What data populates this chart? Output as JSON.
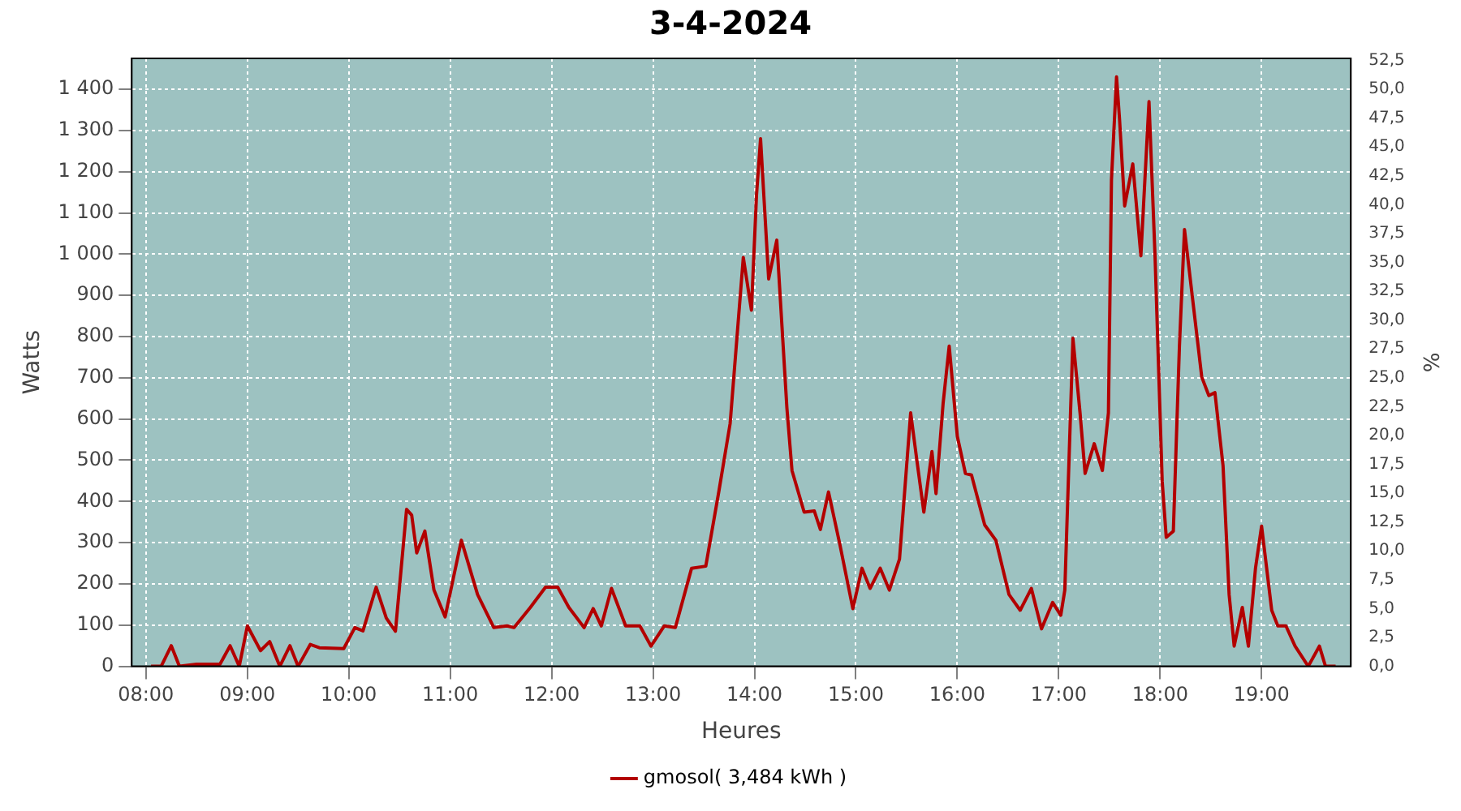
{
  "chart_data": {
    "type": "line",
    "title": "3-4-2024",
    "xlabel": "Heures",
    "ylabel": "Watts",
    "y2label": "%",
    "x": [
      8.05,
      8.15,
      8.25,
      8.33,
      8.5,
      8.73,
      8.83,
      8.92,
      9.0,
      9.13,
      9.22,
      9.32,
      9.42,
      9.5,
      9.62,
      9.71,
      9.95,
      10.06,
      10.14,
      10.27,
      10.37,
      10.46,
      10.57,
      10.62,
      10.67,
      10.75,
      10.84,
      10.95,
      11.11,
      11.27,
      11.43,
      11.56,
      11.63,
      11.79,
      11.94,
      12.06,
      12.17,
      12.32,
      12.41,
      12.49,
      12.59,
      12.73,
      12.87,
      12.98,
      13.11,
      13.22,
      13.38,
      13.52,
      13.65,
      13.76,
      13.89,
      13.97,
      14.02,
      14.06,
      14.14,
      14.22,
      14.32,
      14.37,
      14.49,
      14.59,
      14.65,
      14.73,
      14.84,
      14.97,
      15.06,
      15.14,
      15.24,
      15.33,
      15.43,
      15.54,
      15.6,
      15.67,
      15.75,
      15.79,
      15.86,
      15.92,
      16.0,
      16.08,
      16.14,
      16.27,
      16.38,
      16.51,
      16.62,
      16.73,
      16.83,
      16.94,
      17.02,
      17.06,
      17.14,
      17.21,
      17.26,
      17.35,
      17.43,
      17.49,
      17.52,
      17.57,
      17.6,
      17.65,
      17.73,
      17.81,
      17.89,
      17.95,
      18.02,
      18.06,
      18.13,
      18.19,
      18.24,
      18.32,
      18.41,
      18.48,
      18.54,
      18.62,
      18.68,
      18.73,
      18.81,
      18.87,
      18.94,
      19.0,
      19.1,
      19.16,
      19.24,
      19.33,
      19.46,
      19.57,
      19.63,
      19.73
    ],
    "series": [
      {
        "name": "gmosol( 3,484 kWh )",
        "color": "#b30000",
        "values": [
          0,
          0,
          50,
          0,
          5,
          5,
          50,
          0,
          98,
          38,
          60,
          0,
          50,
          0,
          53,
          45,
          43,
          94,
          86,
          192,
          117,
          85,
          381,
          367,
          275,
          328,
          185,
          120,
          306,
          174,
          94,
          98,
          94,
          143,
          192,
          192,
          143,
          94,
          140,
          98,
          189,
          98,
          98,
          49,
          98,
          94,
          238,
          243,
          426,
          589,
          992,
          864,
          1143,
          1280,
          940,
          1034,
          626,
          475,
          374,
          377,
          332,
          423,
          298,
          140,
          238,
          189,
          238,
          185,
          260,
          615,
          502,
          374,
          521,
          419,
          638,
          777,
          558,
          468,
          464,
          343,
          306,
          174,
          136,
          189,
          91,
          155,
          124,
          185,
          796,
          615,
          468,
          540,
          475,
          615,
          1181,
          1430,
          1325,
          1117,
          1219,
          996,
          1370,
          992,
          449,
          313,
          328,
          777,
          1060,
          891,
          702,
          657,
          664,
          487,
          174,
          49,
          143,
          49,
          238,
          340,
          136,
          98,
          98,
          49,
          0,
          49,
          0,
          0
        ]
      }
    ],
    "xlim": [
      7.86,
      19.88
    ],
    "xticks": [
      {
        "value": 8,
        "label": "08:00"
      },
      {
        "value": 9,
        "label": "09:00"
      },
      {
        "value": 10,
        "label": "10:00"
      },
      {
        "value": 11,
        "label": "11:00"
      },
      {
        "value": 12,
        "label": "12:00"
      },
      {
        "value": 13,
        "label": "13:00"
      },
      {
        "value": 14,
        "label": "14:00"
      },
      {
        "value": 15,
        "label": "15:00"
      },
      {
        "value": 16,
        "label": "16:00"
      },
      {
        "value": 17,
        "label": "17:00"
      },
      {
        "value": 18,
        "label": "18:00"
      },
      {
        "value": 19,
        "label": "19:00"
      }
    ],
    "ylim": [
      0,
      1475
    ],
    "yticks": [
      0,
      100,
      200,
      300,
      400,
      500,
      600,
      700,
      800,
      900,
      {
        "value": 1000,
        "label": "1 000"
      },
      {
        "value": 1100,
        "label": "1 100"
      },
      {
        "value": 1200,
        "label": "1 200"
      },
      {
        "value": 1300,
        "label": "1 300"
      },
      {
        "value": 1400,
        "label": "1 400"
      }
    ],
    "y2lim": [
      0,
      52.68
    ],
    "y2ticks": [
      {
        "value": 0,
        "label": "0,0"
      },
      {
        "value": 2.5,
        "label": "2,5"
      },
      {
        "value": 5,
        "label": "5,0"
      },
      {
        "value": 7.5,
        "label": "7,5"
      },
      {
        "value": 10,
        "label": "10,0"
      },
      {
        "value": 12.5,
        "label": "12,5"
      },
      {
        "value": 15,
        "label": "15,0"
      },
      {
        "value": 17.5,
        "label": "17,5"
      },
      {
        "value": 20,
        "label": "20,0"
      },
      {
        "value": 22.5,
        "label": "22,5"
      },
      {
        "value": 25,
        "label": "25,0"
      },
      {
        "value": 27.5,
        "label": "27,5"
      },
      {
        "value": 30,
        "label": "30,0"
      },
      {
        "value": 32.5,
        "label": "32,5"
      },
      {
        "value": 35,
        "label": "35,0"
      },
      {
        "value": 37.5,
        "label": "37,5"
      },
      {
        "value": 40,
        "label": "40,0"
      },
      {
        "value": 42.5,
        "label": "42,5"
      },
      {
        "value": 45,
        "label": "45,0"
      },
      {
        "value": 47.5,
        "label": "47,5"
      },
      {
        "value": 50,
        "label": "50,0"
      },
      {
        "value": 52.5,
        "label": "52,5"
      }
    ],
    "grid": true,
    "legend": "bottom",
    "marker": "none",
    "line_style": "solid"
  }
}
